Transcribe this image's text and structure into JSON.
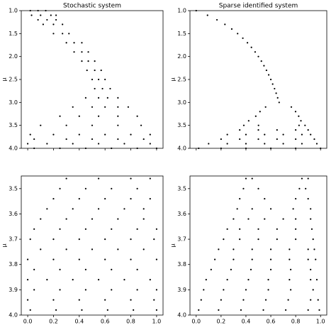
{
  "chart_data": [
    {
      "type": "scatter",
      "title": "Stochastic system",
      "y_label": "μ",
      "color": "#000000",
      "xlim": [
        -0.05,
        1.05
      ],
      "ylim": [
        4.0,
        1.0
      ],
      "xtick_labels": false,
      "xticks": [
        0,
        0.2,
        0.4,
        0.6,
        0.8,
        1
      ],
      "yticks": [
        {
          "value": 1,
          "label": "1.0"
        },
        1.5,
        {
          "value": 2,
          "label": "2.0"
        },
        2.5,
        {
          "value": 3,
          "label": "3.0"
        },
        3.5,
        {
          "value": 4,
          "label": "4.0"
        }
      ],
      "x": [
        0.02,
        0.08,
        0.14,
        0.03,
        0.1,
        0.18,
        0.22,
        0.08,
        0.15,
        0.22,
        0.12,
        0.2,
        0.27,
        0.2,
        0.27,
        0.32,
        0.3,
        0.36,
        0.42,
        0.36,
        0.42,
        0.47,
        0.42,
        0.47,
        0.52,
        0.46,
        0.52,
        0.57,
        0.5,
        0.55,
        0.6,
        0.52,
        0.58,
        0.64,
        0.45,
        0.55,
        0.62,
        0.7,
        0.35,
        0.5,
        0.6,
        0.7,
        0.78,
        0.25,
        0.4,
        0.55,
        0.7,
        0.85,
        0.1,
        0.3,
        0.5,
        0.7,
        0.88,
        0.02,
        0.2,
        0.4,
        0.6,
        0.8,
        0.95,
        0.05,
        0.3,
        0.5,
        0.7,
        0.9,
        0.0,
        0.15,
        0.35,
        0.55,
        0.75,
        0.95,
        0.05,
        0.25,
        0.45,
        0.65,
        0.85,
        1.0
      ],
      "values": [
        1.0,
        1.0,
        1.0,
        1.1,
        1.1,
        1.1,
        1.1,
        1.2,
        1.2,
        1.2,
        1.3,
        1.3,
        1.3,
        1.5,
        1.5,
        1.5,
        1.7,
        1.7,
        1.7,
        1.9,
        1.9,
        1.9,
        2.1,
        2.1,
        2.1,
        2.3,
        2.3,
        2.3,
        2.5,
        2.5,
        2.5,
        2.7,
        2.7,
        2.7,
        2.9,
        2.9,
        2.9,
        2.9,
        3.1,
        3.1,
        3.1,
        3.1,
        3.1,
        3.3,
        3.3,
        3.3,
        3.3,
        3.3,
        3.5,
        3.5,
        3.5,
        3.5,
        3.5,
        3.7,
        3.7,
        3.7,
        3.7,
        3.7,
        3.7,
        3.8,
        3.8,
        3.8,
        3.8,
        3.8,
        3.9,
        3.9,
        3.9,
        3.9,
        3.9,
        3.9,
        4.0,
        4.0,
        4.0,
        4.0,
        4.0,
        4.0
      ]
    },
    {
      "type": "scatter",
      "title": "Sparse identified system",
      "y_label": "μ",
      "color": "#000000",
      "xlim": [
        -0.05,
        1.05
      ],
      "ylim": [
        4.0,
        1.0
      ],
      "xtick_labels": false,
      "xticks": [
        0,
        0.2,
        0.4,
        0.6,
        0.8,
        1
      ],
      "yticks": [
        {
          "value": 1,
          "label": "1.0"
        },
        1.5,
        {
          "value": 2,
          "label": "2.0"
        },
        2.5,
        {
          "value": 3,
          "label": "3.0"
        },
        3.5,
        {
          "value": 4,
          "label": "4.0"
        }
      ],
      "x": [
        0,
        0.091,
        0.167,
        0.231,
        0.286,
        0.333,
        0.375,
        0.412,
        0.444,
        0.474,
        0.5,
        0.524,
        0.545,
        0.565,
        0.583,
        0.6,
        0.615,
        0.63,
        0.643,
        0.655,
        0.667,
        0.558,
        0.765,
        0.513,
        0.799,
        0.479,
        0.824,
        0.422,
        0.842,
        0.383,
        0.501,
        0.827,
        0.875,
        0.35,
        0.5,
        0.65,
        0.8,
        0.9,
        0.25,
        0.4,
        0.55,
        0.7,
        0.85,
        0.92,
        0.2,
        0.35,
        0.5,
        0.65,
        0.8,
        0.95,
        0.1,
        0.25,
        0.4,
        0.55,
        0.7,
        0.85,
        0.97,
        0.02,
        0.2,
        0.4,
        0.6,
        0.8,
        1.0
      ],
      "values": [
        1.0,
        1.1,
        1.2,
        1.3,
        1.4,
        1.5,
        1.6,
        1.7,
        1.8,
        1.9,
        2.0,
        2.1,
        2.2,
        2.3,
        2.4,
        2.5,
        2.6,
        2.7,
        2.8,
        2.9,
        3.0,
        3.1,
        3.1,
        3.2,
        3.2,
        3.3,
        3.3,
        3.4,
        3.4,
        3.5,
        3.5,
        3.5,
        3.5,
        3.6,
        3.6,
        3.6,
        3.6,
        3.6,
        3.7,
        3.7,
        3.7,
        3.7,
        3.7,
        3.7,
        3.8,
        3.8,
        3.8,
        3.8,
        3.8,
        3.8,
        3.9,
        3.9,
        3.9,
        3.9,
        3.9,
        3.9,
        3.9,
        4.0,
        4.0,
        4.0,
        4.0,
        4.0,
        4.0
      ]
    },
    {
      "type": "scatter",
      "y_label": "μ",
      "color": "#000000",
      "xlim": [
        -0.05,
        1.05
      ],
      "ylim": [
        4.0,
        3.45
      ],
      "xtick_labels": true,
      "xticks": [
        {
          "value": 0,
          "label": "0.0"
        },
        0.2,
        0.4,
        0.6,
        0.8,
        {
          "value": 1,
          "label": "1.0"
        }
      ],
      "yticks": [
        3.5,
        3.6,
        3.7,
        3.8,
        3.9,
        {
          "value": 4,
          "label": "4.0"
        }
      ],
      "x": [
        0.3,
        0.55,
        0.8,
        0.95,
        0.25,
        0.45,
        0.65,
        0.85,
        0.2,
        0.4,
        0.6,
        0.8,
        0.95,
        0.15,
        0.35,
        0.55,
        0.75,
        0.9,
        0.1,
        0.3,
        0.5,
        0.7,
        0.9,
        0.05,
        0.25,
        0.45,
        0.65,
        0.85,
        1.0,
        0.02,
        0.2,
        0.4,
        0.6,
        0.8,
        0.98,
        0.1,
        0.3,
        0.5,
        0.7,
        0.9,
        0.0,
        0.2,
        0.4,
        0.6,
        0.8,
        1.0,
        0.05,
        0.25,
        0.45,
        0.65,
        0.85,
        0.0,
        0.15,
        0.35,
        0.55,
        0.75,
        0.95,
        0.05,
        0.25,
        0.45,
        0.65,
        0.85,
        1.0,
        0.0,
        0.2,
        0.4,
        0.6,
        0.8,
        0.98,
        0.02,
        0.22,
        0.42,
        0.62,
        0.82,
        1.0
      ],
      "values": [
        3.46,
        3.46,
        3.46,
        3.46,
        3.5,
        3.5,
        3.5,
        3.5,
        3.54,
        3.54,
        3.54,
        3.54,
        3.54,
        3.58,
        3.58,
        3.58,
        3.58,
        3.58,
        3.62,
        3.62,
        3.62,
        3.62,
        3.62,
        3.66,
        3.66,
        3.66,
        3.66,
        3.66,
        3.66,
        3.7,
        3.7,
        3.7,
        3.7,
        3.7,
        3.7,
        3.74,
        3.74,
        3.74,
        3.74,
        3.74,
        3.78,
        3.78,
        3.78,
        3.78,
        3.78,
        3.78,
        3.82,
        3.82,
        3.82,
        3.82,
        3.82,
        3.86,
        3.86,
        3.86,
        3.86,
        3.86,
        3.86,
        3.9,
        3.9,
        3.9,
        3.9,
        3.9,
        3.9,
        3.94,
        3.94,
        3.94,
        3.94,
        3.94,
        3.94,
        3.98,
        3.98,
        3.98,
        3.98,
        3.98,
        3.98
      ]
    },
    {
      "type": "scatter",
      "y_label": "μ",
      "color": "#000000",
      "xlim": [
        -0.05,
        1.05
      ],
      "ylim": [
        4.0,
        3.45
      ],
      "xtick_labels": true,
      "xticks": [
        {
          "value": 0,
          "label": "0.0"
        },
        0.2,
        0.4,
        0.6,
        0.8,
        {
          "value": 1,
          "label": "1.0"
        }
      ],
      "yticks": [
        3.5,
        3.6,
        3.7,
        3.8,
        3.9,
        {
          "value": 4,
          "label": "4.0"
        }
      ],
      "x": [
        0.4,
        0.45,
        0.85,
        0.9,
        0.38,
        0.5,
        0.83,
        0.88,
        0.35,
        0.55,
        0.8,
        0.9,
        0.33,
        0.45,
        0.6,
        0.78,
        0.92,
        0.3,
        0.42,
        0.55,
        0.7,
        0.8,
        0.92,
        0.25,
        0.35,
        0.5,
        0.65,
        0.8,
        0.93,
        0.22,
        0.35,
        0.5,
        0.65,
        0.8,
        0.94,
        0.18,
        0.3,
        0.45,
        0.6,
        0.75,
        0.9,
        0.95,
        0.15,
        0.3,
        0.45,
        0.6,
        0.75,
        0.9,
        0.96,
        0.12,
        0.28,
        0.44,
        0.6,
        0.76,
        0.92,
        0.08,
        0.25,
        0.42,
        0.58,
        0.75,
        0.92,
        0.97,
        0.06,
        0.22,
        0.4,
        0.58,
        0.76,
        0.94,
        0.04,
        0.2,
        0.38,
        0.56,
        0.74,
        0.92,
        0.98,
        0.02,
        0.18,
        0.36,
        0.54,
        0.72,
        0.9,
        0.99
      ],
      "values": [
        3.46,
        3.46,
        3.46,
        3.46,
        3.5,
        3.5,
        3.5,
        3.5,
        3.54,
        3.54,
        3.54,
        3.54,
        3.58,
        3.58,
        3.58,
        3.58,
        3.58,
        3.62,
        3.62,
        3.62,
        3.62,
        3.62,
        3.62,
        3.66,
        3.66,
        3.66,
        3.66,
        3.66,
        3.66,
        3.7,
        3.7,
        3.7,
        3.7,
        3.7,
        3.7,
        3.74,
        3.74,
        3.74,
        3.74,
        3.74,
        3.74,
        3.74,
        3.78,
        3.78,
        3.78,
        3.78,
        3.78,
        3.78,
        3.78,
        3.82,
        3.82,
        3.82,
        3.82,
        3.82,
        3.82,
        3.86,
        3.86,
        3.86,
        3.86,
        3.86,
        3.86,
        3.86,
        3.9,
        3.9,
        3.9,
        3.9,
        3.9,
        3.9,
        3.94,
        3.94,
        3.94,
        3.94,
        3.94,
        3.94,
        3.94,
        3.98,
        3.98,
        3.98,
        3.98,
        3.98,
        3.98,
        3.98
      ]
    }
  ]
}
